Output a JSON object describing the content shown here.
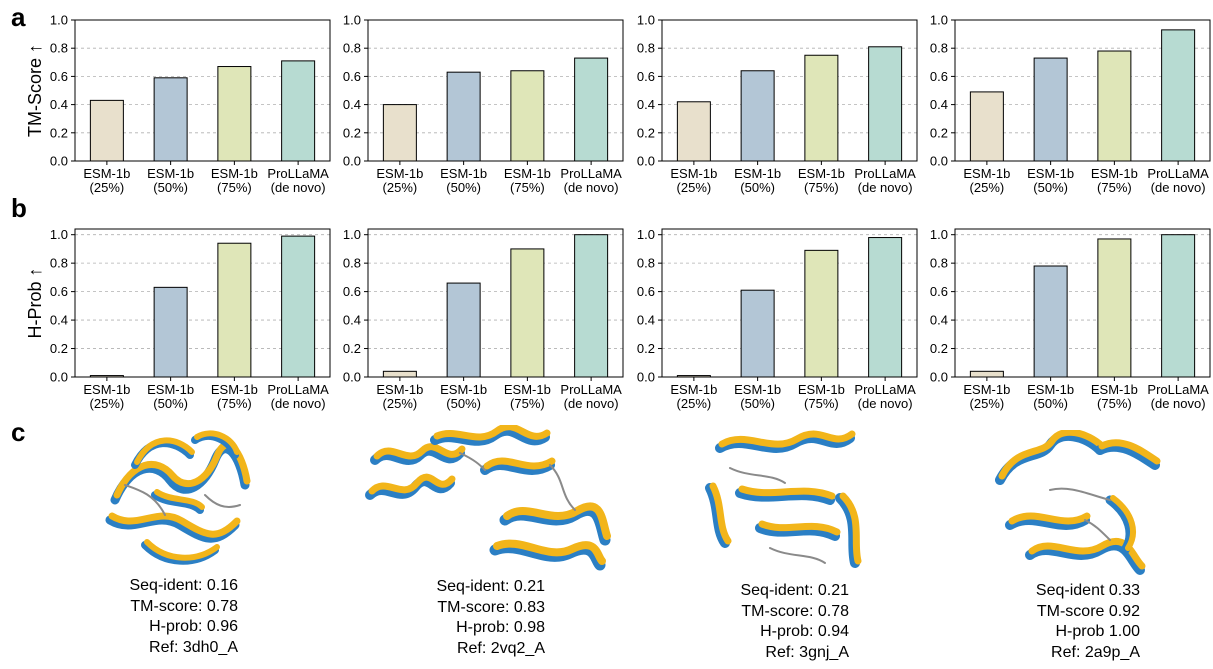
{
  "panel_labels": {
    "a": "a",
    "b": "b",
    "c": "c"
  },
  "colors": {
    "esm_25": "#e8e0cc",
    "esm_50": "#b3c6d6",
    "esm_75": "#dfe6b8",
    "prollama": "#b7dbd2",
    "grid": "#b0b0b0",
    "structure_blue": "#2b7fc4",
    "structure_yellow": "#f2b51a"
  },
  "chart_data": [
    {
      "type": "bar",
      "row": "a",
      "ylabel": "TM-Score ↑",
      "ylim": [
        0,
        1.0
      ],
      "yticks": [
        "0.0",
        "0.2",
        "0.4",
        "0.6",
        "0.8",
        "1.0"
      ],
      "categories": [
        [
          "ESM-1b",
          "(25%)"
        ],
        [
          "ESM-1b",
          "(50%)"
        ],
        [
          "ESM-1b",
          "(75%)"
        ],
        [
          "ProLLaMA",
          "(de novo)"
        ]
      ],
      "values": [
        0.43,
        0.59,
        0.67,
        0.71
      ],
      "grid": "horizontal dashed"
    },
    {
      "type": "bar",
      "row": "a",
      "ylabel": "",
      "ylim": [
        0,
        1.0
      ],
      "yticks": [
        "0.0",
        "0.2",
        "0.4",
        "0.6",
        "0.8",
        "1.0"
      ],
      "categories": [
        [
          "ESM-1b",
          "(25%)"
        ],
        [
          "ESM-1b",
          "(50%)"
        ],
        [
          "ESM-1b",
          "(75%)"
        ],
        [
          "ProLLaMA",
          "(de novo)"
        ]
      ],
      "values": [
        0.4,
        0.63,
        0.64,
        0.73
      ],
      "grid": "horizontal dashed"
    },
    {
      "type": "bar",
      "row": "a",
      "ylabel": "",
      "ylim": [
        0,
        1.0
      ],
      "yticks": [
        "0.0",
        "0.2",
        "0.4",
        "0.6",
        "0.8",
        "1.0"
      ],
      "categories": [
        [
          "ESM-1b",
          "(25%)"
        ],
        [
          "ESM-1b",
          "(50%)"
        ],
        [
          "ESM-1b",
          "(75%)"
        ],
        [
          "ProLLaMA",
          "(de novo)"
        ]
      ],
      "values": [
        0.42,
        0.64,
        0.75,
        0.81
      ],
      "grid": "horizontal dashed"
    },
    {
      "type": "bar",
      "row": "a",
      "ylabel": "",
      "ylim": [
        0,
        1.0
      ],
      "yticks": [
        "0.0",
        "0.2",
        "0.4",
        "0.6",
        "0.8",
        "1.0"
      ],
      "categories": [
        [
          "ESM-1b",
          "(25%)"
        ],
        [
          "ESM-1b",
          "(50%)"
        ],
        [
          "ESM-1b",
          "(75%)"
        ],
        [
          "ProLLaMA",
          "(de novo)"
        ]
      ],
      "values": [
        0.49,
        0.73,
        0.78,
        0.93
      ],
      "grid": "horizontal dashed"
    },
    {
      "type": "bar",
      "row": "b",
      "ylabel": "H-Prob ↑",
      "ylim": [
        0,
        1.04
      ],
      "yticks": [
        "0.0",
        "0.2",
        "0.4",
        "0.6",
        "0.8",
        "1.0"
      ],
      "categories": [
        [
          "ESM-1b",
          "(25%)"
        ],
        [
          "ESM-1b",
          "(50%)"
        ],
        [
          "ESM-1b",
          "(75%)"
        ],
        [
          "ProLLaMA",
          "(de novo)"
        ]
      ],
      "values": [
        0.01,
        0.63,
        0.94,
        0.99
      ],
      "grid": "horizontal dashed"
    },
    {
      "type": "bar",
      "row": "b",
      "ylabel": "",
      "ylim": [
        0,
        1.04
      ],
      "yticks": [
        "0.0",
        "0.2",
        "0.4",
        "0.6",
        "0.8",
        "1.0"
      ],
      "categories": [
        [
          "ESM-1b",
          "(25%)"
        ],
        [
          "ESM-1b",
          "(50%)"
        ],
        [
          "ESM-1b",
          "(75%)"
        ],
        [
          "ProLLaMA",
          "(de novo)"
        ]
      ],
      "values": [
        0.04,
        0.66,
        0.9,
        1.0
      ],
      "grid": "horizontal dashed"
    },
    {
      "type": "bar",
      "row": "b",
      "ylabel": "",
      "ylim": [
        0,
        1.04
      ],
      "yticks": [
        "0.0",
        "0.2",
        "0.4",
        "0.6",
        "0.8",
        "1.0"
      ],
      "categories": [
        [
          "ESM-1b",
          "(25%)"
        ],
        [
          "ESM-1b",
          "(50%)"
        ],
        [
          "ESM-1b",
          "(75%)"
        ],
        [
          "ProLLaMA",
          "(de novo)"
        ]
      ],
      "values": [
        0.01,
        0.61,
        0.89,
        0.98
      ],
      "grid": "horizontal dashed"
    },
    {
      "type": "bar",
      "row": "b",
      "ylabel": "",
      "ylim": [
        0,
        1.04
      ],
      "yticks": [
        "0.0",
        "0.2",
        "0.4",
        "0.6",
        "0.8",
        "1.0"
      ],
      "categories": [
        [
          "ESM-1b",
          "(25%)"
        ],
        [
          "ESM-1b",
          "(50%)"
        ],
        [
          "ESM-1b",
          "(75%)"
        ],
        [
          "ProLLaMA",
          "(de novo)"
        ]
      ],
      "values": [
        0.04,
        0.78,
        0.97,
        1.0
      ],
      "grid": "horizontal dashed"
    }
  ],
  "structures": [
    {
      "lines": [
        "Seq-ident: 0.16",
        "TM-score: 0.78",
        "H-prob: 0.96",
        "Ref: 3dh0_A"
      ]
    },
    {
      "lines": [
        "Seq-ident: 0.21",
        "TM-score: 0.83",
        "H-prob: 0.98",
        "Ref: 2vq2_A"
      ]
    },
    {
      "lines": [
        "Seq-ident: 0.21",
        "TM-score: 0.78",
        "H-prob: 0.94",
        "Ref: 3gnj_A"
      ]
    },
    {
      "lines": [
        "Seq-ident 0.33",
        "TM-score 0.92",
        "H-prob 1.00",
        "Ref: 2a9p_A"
      ]
    }
  ]
}
